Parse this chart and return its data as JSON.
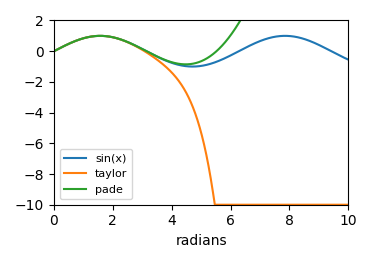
{
  "title": "",
  "xlabel": "radians",
  "ylabel": "",
  "xlim": [
    0,
    10
  ],
  "ylim": [
    -10,
    2
  ],
  "yticks": [
    -10,
    -8,
    -6,
    -4,
    -2,
    0,
    2
  ],
  "xticks": [
    0,
    2,
    4,
    6,
    8,
    10
  ],
  "legend_labels": [
    "sin(x)",
    "taylor",
    "pade"
  ],
  "line_colors": [
    "#1f77b4",
    "#ff7f0e",
    "#2ca02c"
  ],
  "figsize": [
    3.72,
    2.63
  ],
  "dpi": 100,
  "legend_loc": "lower left",
  "legend_fontsize": 8
}
